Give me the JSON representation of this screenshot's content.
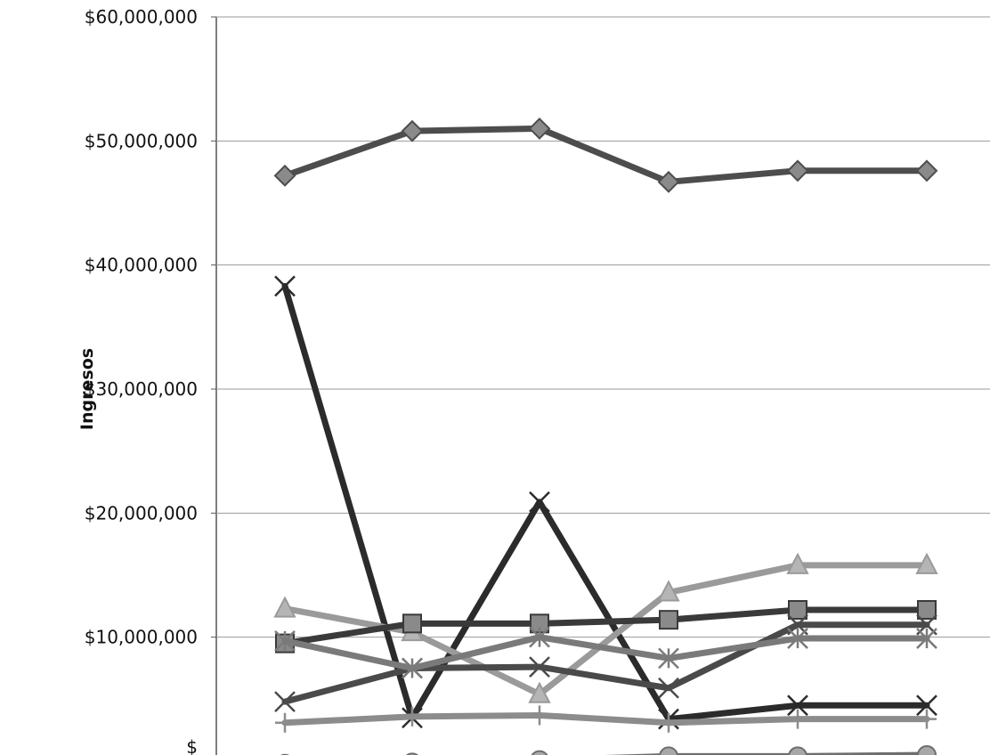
{
  "chart_data": {
    "type": "line",
    "ylabel": "Ingresos",
    "y_tick_labels": [
      "$60,000,000",
      "$50,000,000",
      "$40,000,000",
      "$30,000,000",
      "$20,000,000",
      "$10,000,000",
      "$"
    ],
    "ylim": [
      0,
      60000000
    ],
    "x": [
      1,
      2,
      3,
      4,
      5,
      6
    ],
    "grid": true,
    "series": [
      {
        "marker": "diamond",
        "color": "#4d4d4d",
        "values": [
          47200000,
          50800000,
          51000000,
          46700000,
          47600000,
          47600000
        ]
      },
      {
        "marker": "x",
        "color": "#2b2b2b",
        "values": [
          38300000,
          3500000,
          20900000,
          3400000,
          4500000,
          4500000
        ]
      },
      {
        "marker": "triangle",
        "color": "#9a9a9a",
        "values": [
          12300000,
          10400000,
          5400000,
          13600000,
          15800000,
          15800000
        ]
      },
      {
        "marker": "square",
        "color": "#3a3a3a",
        "values": [
          9500000,
          11100000,
          11100000,
          11400000,
          12200000,
          12200000
        ]
      },
      {
        "marker": "cross",
        "color": "#4a4a4a",
        "values": [
          4800000,
          7500000,
          7600000,
          5900000,
          11000000,
          11000000
        ]
      },
      {
        "marker": "asterisk",
        "color": "#7a7a7a",
        "values": [
          9700000,
          7500000,
          10000000,
          8300000,
          9900000,
          9900000
        ]
      },
      {
        "marker": "plus",
        "color": "#8c8c8c",
        "values": [
          3100000,
          3600000,
          3700000,
          3100000,
          3400000,
          3400000
        ]
      },
      {
        "marker": "circle",
        "color": "#6e6e6e",
        "values": [
          -200000,
          -100000,
          100000,
          400000,
          400000,
          500000
        ]
      }
    ],
    "legend": "none"
  }
}
